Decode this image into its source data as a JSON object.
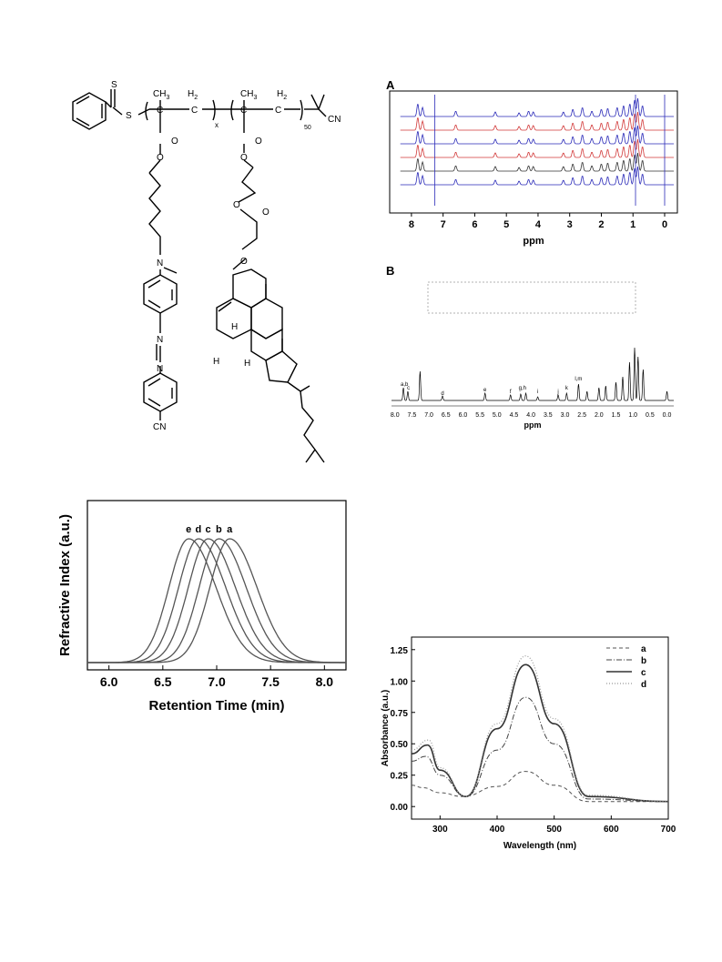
{
  "structure": {
    "labels": {
      "s_dithio": "S",
      "s_link": "S",
      "ch3_left": "CH",
      "ch3_left_sub": "3",
      "h2_first": "H",
      "h2_first_sub": "2",
      "x_sub": "x",
      "ch3_right": "CH",
      "ch3_right_sub": "3",
      "h2_second": "H",
      "h2_second_sub": "2",
      "c_a": "C",
      "c_b": "C",
      "c_c": "C",
      "c_d": "C",
      "sub_50": "50",
      "cn_end": "CN",
      "o_eq_1": "O",
      "o_single_1": "O",
      "o_eq_2": "O",
      "o_single_2": "O",
      "o_ester_2": "O",
      "o_ester_2b": "O",
      "o_ester_3": "O",
      "n_amine": "N",
      "n_azo_1": "N",
      "n_azo_2": "N",
      "cn_azo": "CN",
      "h_a": "H",
      "h_b": "H",
      "h_c": "H"
    }
  },
  "nmr_a": {
    "label": "A",
    "xlabel": "ppm",
    "ticks": [
      "8",
      "7",
      "6",
      "5",
      "4",
      "3",
      "2",
      "1",
      "0"
    ]
  },
  "nmr_b": {
    "label": "B",
    "xlabel": "ppm",
    "ticks": [
      "8.0",
      "7.5",
      "7.0",
      "6.5",
      "6.0",
      "5.5",
      "5.0",
      "4.5",
      "4.0",
      "3.5",
      "3.0",
      "2.5",
      "2.0",
      "1.5",
      "1.0",
      "0.5",
      "0.0"
    ],
    "peak_labels": [
      "a,b",
      "c",
      "d",
      "e",
      "f",
      "g,h",
      "i",
      "j",
      "k",
      "l,m"
    ]
  },
  "chart_data": [
    {
      "type": "line",
      "xlabel": "Retention Time  (min)",
      "ylabel": "Refractive Index  (a.u.)",
      "xlim": [
        5.8,
        8.2
      ],
      "xticks": [
        "6.0",
        "6.5",
        "7.0",
        "7.5",
        "8.0"
      ],
      "series": [
        {
          "name": "a",
          "peak_x": 7.12
        },
        {
          "name": "b",
          "peak_x": 7.02
        },
        {
          "name": "c",
          "peak_x": 6.92
        },
        {
          "name": "d",
          "peak_x": 6.83
        },
        {
          "name": "e",
          "peak_x": 6.74
        }
      ]
    },
    {
      "type": "line",
      "xlabel": "Wavelength (nm)",
      "ylabel": "Absorbance (a.u.)",
      "xlim": [
        250,
        700
      ],
      "ylim": [
        -0.1,
        1.35
      ],
      "xticks": [
        "300",
        "400",
        "500",
        "600",
        "700"
      ],
      "yticks": [
        "0.00",
        "0.25",
        "0.50",
        "0.75",
        "1.00",
        "1.25"
      ],
      "legend_position": "top-right",
      "series": [
        {
          "name": "a",
          "x": [
            250,
            270,
            300,
            340,
            400,
            450,
            500,
            560,
            700
          ],
          "y": [
            0.17,
            0.15,
            0.11,
            0.08,
            0.16,
            0.28,
            0.17,
            0.04,
            0.04
          ]
        },
        {
          "name": "b",
          "x": [
            250,
            275,
            300,
            345,
            400,
            450,
            500,
            560,
            700
          ],
          "y": [
            0.36,
            0.4,
            0.25,
            0.08,
            0.45,
            0.87,
            0.5,
            0.06,
            0.04
          ]
        },
        {
          "name": "c",
          "x": [
            250,
            278,
            300,
            345,
            400,
            450,
            500,
            560,
            700
          ],
          "y": [
            0.42,
            0.49,
            0.29,
            0.08,
            0.62,
            1.13,
            0.66,
            0.08,
            0.04
          ]
        },
        {
          "name": "d",
          "x": [
            250,
            280,
            300,
            345,
            400,
            450,
            500,
            560,
            700
          ],
          "y": [
            0.45,
            0.53,
            0.31,
            0.08,
            0.66,
            1.2,
            0.7,
            0.09,
            0.04
          ]
        }
      ]
    }
  ]
}
